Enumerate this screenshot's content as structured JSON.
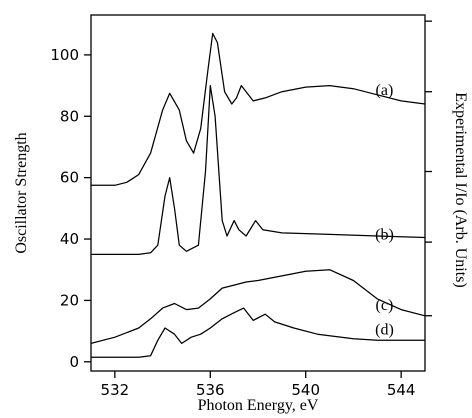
{
  "chart_data": {
    "type": "line",
    "xlabel": "Photon Energy, eV",
    "ylabel": "Oscillator Strength",
    "y2label": "Experimental I/Io (Arb. Units)",
    "xlim": [
      531,
      545
    ],
    "ylim": [
      -3,
      113
    ],
    "x_ticks": [
      532,
      536,
      540,
      544
    ],
    "y_ticks": [
      0,
      20,
      40,
      60,
      80,
      100
    ],
    "right_axis_tick_values": [
      111,
      88,
      62,
      39,
      15
    ],
    "right_axis_major_tick": 39,
    "grid": false,
    "legend": "none",
    "series": [
      {
        "name": "(a)",
        "label_at": [
          543.3,
          88.5
        ],
        "points": [
          [
            531,
            57.5
          ],
          [
            532,
            57.5
          ],
          [
            532.5,
            58.5
          ],
          [
            533,
            61
          ],
          [
            533.5,
            68
          ],
          [
            534,
            82
          ],
          [
            534.3,
            87.5
          ],
          [
            534.7,
            82
          ],
          [
            535,
            72
          ],
          [
            535.3,
            68
          ],
          [
            535.6,
            76
          ],
          [
            535.9,
            95
          ],
          [
            536.1,
            107
          ],
          [
            536.3,
            104
          ],
          [
            536.6,
            88
          ],
          [
            536.9,
            84
          ],
          [
            537.1,
            86
          ],
          [
            537.3,
            90
          ],
          [
            537.5,
            88
          ],
          [
            537.8,
            85
          ],
          [
            538.3,
            86
          ],
          [
            539,
            88
          ],
          [
            540,
            89.5
          ],
          [
            541,
            90
          ],
          [
            542,
            89
          ],
          [
            543,
            87
          ],
          [
            544,
            85
          ],
          [
            545,
            84
          ]
        ]
      },
      {
        "name": "(b)",
        "label_at": [
          543.3,
          41.5
        ],
        "points": [
          [
            531,
            35
          ],
          [
            532,
            35
          ],
          [
            533,
            35
          ],
          [
            533.5,
            35.5
          ],
          [
            533.8,
            38
          ],
          [
            534.1,
            54
          ],
          [
            534.3,
            60
          ],
          [
            534.5,
            50
          ],
          [
            534.7,
            38
          ],
          [
            535,
            36
          ],
          [
            535.5,
            38
          ],
          [
            535.8,
            62
          ],
          [
            536,
            90
          ],
          [
            536.2,
            80
          ],
          [
            536.5,
            46
          ],
          [
            536.7,
            41
          ],
          [
            537,
            46
          ],
          [
            537.2,
            43
          ],
          [
            537.5,
            41
          ],
          [
            537.9,
            46
          ],
          [
            538.2,
            43
          ],
          [
            539,
            42
          ],
          [
            541,
            41.5
          ],
          [
            543,
            41
          ],
          [
            545,
            40.5
          ]
        ]
      },
      {
        "name": "(c)",
        "label_at": [
          543.3,
          18.5
        ],
        "points": [
          [
            531,
            6
          ],
          [
            532,
            8
          ],
          [
            533,
            11
          ],
          [
            533.5,
            14
          ],
          [
            534,
            17.5
          ],
          [
            534.5,
            19
          ],
          [
            535,
            17
          ],
          [
            535.5,
            17.5
          ],
          [
            536,
            20.5
          ],
          [
            536.5,
            24
          ],
          [
            537,
            25
          ],
          [
            537.5,
            26
          ],
          [
            538,
            26.5
          ],
          [
            539,
            28
          ],
          [
            540,
            29.5
          ],
          [
            541,
            30
          ],
          [
            542,
            26.5
          ],
          [
            543,
            20.5
          ],
          [
            544,
            17
          ],
          [
            545,
            15
          ]
        ]
      },
      {
        "name": "(d)",
        "label_at": [
          543.3,
          10.5
        ],
        "points": [
          [
            531,
            1.5
          ],
          [
            532,
            1.5
          ],
          [
            533,
            1.5
          ],
          [
            533.5,
            2
          ],
          [
            533.8,
            7
          ],
          [
            534.1,
            11
          ],
          [
            534.5,
            9
          ],
          [
            534.8,
            6
          ],
          [
            535.2,
            8
          ],
          [
            535.6,
            9
          ],
          [
            536,
            11
          ],
          [
            536.5,
            14
          ],
          [
            537,
            16
          ],
          [
            537.4,
            17.5
          ],
          [
            537.8,
            13.5
          ],
          [
            538.3,
            15.5
          ],
          [
            538.7,
            13
          ],
          [
            539.5,
            11
          ],
          [
            540.5,
            9
          ],
          [
            542,
            7.5
          ],
          [
            543,
            7
          ],
          [
            545,
            7
          ]
        ]
      }
    ]
  }
}
